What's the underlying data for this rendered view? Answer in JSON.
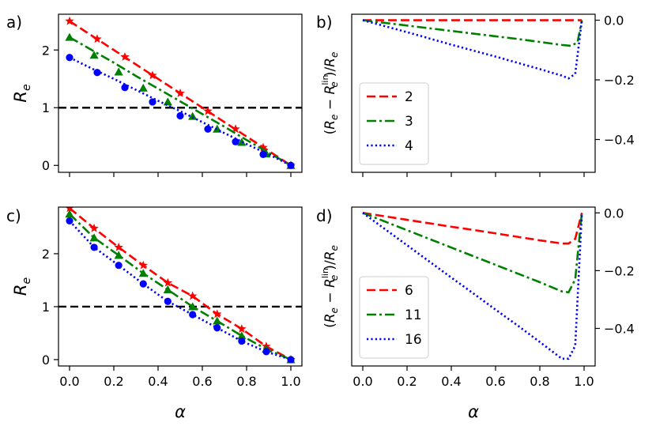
{
  "panel_labels": [
    "a)",
    "b)",
    "c)",
    "d)"
  ],
  "colors": {
    "series1": "#ff0000",
    "series2": "#008000",
    "series3": "#0000ff",
    "reference": "#000000"
  },
  "chart_data": [
    {
      "panel": "a)",
      "type": "line",
      "xlabel": "",
      "ylabel": "R_e",
      "xlim": [
        -0.05,
        1.05
      ],
      "ylim": [
        -0.12,
        2.62
      ],
      "xticks": [
        0.0,
        0.2,
        0.4,
        0.6,
        0.8,
        1.0
      ],
      "xtick_labels": [
        "",
        "",
        "",
        "",
        "",
        ""
      ],
      "yticks": [
        0,
        1,
        2
      ],
      "ytick_labels": [
        "0",
        "1",
        "2"
      ],
      "hline": 1,
      "series": [
        {
          "color": "red",
          "linestyle": "dashed",
          "marker": "star",
          "x": [
            0.0,
            0.1,
            0.2,
            0.3,
            0.4,
            0.5,
            0.6,
            0.7,
            0.8,
            0.9,
            1.0
          ],
          "y": [
            2.5,
            2.25,
            2.0,
            1.75,
            1.5,
            1.25,
            1.0,
            0.75,
            0.5,
            0.25,
            0.0
          ],
          "marker_x": [
            0.0,
            0.125,
            0.25,
            0.375,
            0.5,
            0.625,
            0.75,
            0.875,
            1.0
          ],
          "marker_y": [
            2.5,
            2.19,
            1.88,
            1.56,
            1.25,
            0.94,
            0.63,
            0.31,
            0.0
          ]
        },
        {
          "color": "green",
          "linestyle": "dashdot",
          "marker": "triangle",
          "x": [
            0.0,
            0.1,
            0.2,
            0.3,
            0.4,
            0.5,
            0.6,
            0.7,
            0.8,
            0.9,
            1.0
          ],
          "y": [
            2.22,
            2.0,
            1.78,
            1.55,
            1.33,
            1.11,
            0.89,
            0.67,
            0.44,
            0.22,
            0.0
          ],
          "marker_x": [
            0.0,
            0.111,
            0.222,
            0.333,
            0.444,
            0.556,
            0.667,
            0.778,
            0.889,
            1.0
          ],
          "marker_y": [
            2.22,
            1.91,
            1.62,
            1.34,
            1.1,
            0.85,
            0.63,
            0.4,
            0.2,
            0.0
          ]
        },
        {
          "color": "blue",
          "linestyle": "dotted",
          "marker": "circle",
          "x": [
            0.0,
            0.1,
            0.2,
            0.3,
            0.4,
            0.5,
            0.6,
            0.7,
            0.8,
            0.9,
            1.0
          ],
          "y": [
            1.87,
            1.68,
            1.5,
            1.31,
            1.12,
            0.94,
            0.75,
            0.56,
            0.37,
            0.19,
            0.0
          ],
          "marker_x": [
            0.0,
            0.125,
            0.25,
            0.375,
            0.5,
            0.625,
            0.75,
            0.875,
            1.0
          ],
          "marker_y": [
            1.87,
            1.61,
            1.35,
            1.1,
            0.86,
            0.63,
            0.41,
            0.19,
            0.0
          ]
        }
      ]
    },
    {
      "panel": "b)",
      "type": "line",
      "xlabel": "",
      "ylabel": "(R_e − R_e^lin)/R_e",
      "xlim": [
        -0.05,
        1.05
      ],
      "ylim": [
        -0.51,
        0.02
      ],
      "xticks": [
        0.0,
        0.2,
        0.4,
        0.6,
        0.8,
        1.0
      ],
      "xtick_labels": [
        "",
        "",
        "",
        "",
        "",
        ""
      ],
      "yticks": [
        0.0,
        -0.2,
        -0.4
      ],
      "ytick_labels": [
        "0.0",
        "−0.2",
        "−0.4"
      ],
      "legend": {
        "location": "lower-left",
        "entries": [
          "2",
          "3",
          "4"
        ]
      },
      "series": [
        {
          "name": "2",
          "color": "red",
          "linestyle": "dashed",
          "x": [
            0.0,
            0.5,
            0.99
          ],
          "y": [
            0.0,
            0.0,
            0.0
          ]
        },
        {
          "name": "3",
          "color": "green",
          "linestyle": "dashdot",
          "x": [
            0.0,
            0.1,
            0.2,
            0.3,
            0.4,
            0.5,
            0.6,
            0.7,
            0.8,
            0.9,
            0.94,
            0.97,
            0.99
          ],
          "y": [
            0.0,
            -0.009,
            -0.018,
            -0.027,
            -0.036,
            -0.045,
            -0.054,
            -0.063,
            -0.073,
            -0.083,
            -0.086,
            -0.075,
            0.0
          ]
        },
        {
          "name": "4",
          "color": "blue",
          "linestyle": "dotted",
          "x": [
            0.0,
            0.1,
            0.2,
            0.3,
            0.4,
            0.5,
            0.6,
            0.7,
            0.8,
            0.9,
            0.93,
            0.96,
            0.99
          ],
          "y": [
            0.0,
            -0.02,
            -0.04,
            -0.061,
            -0.082,
            -0.102,
            -0.122,
            -0.143,
            -0.164,
            -0.186,
            -0.195,
            -0.18,
            0.0
          ]
        }
      ]
    },
    {
      "panel": "c)",
      "type": "line",
      "xlabel": "α",
      "ylabel": "R_e",
      "xlim": [
        -0.05,
        1.05
      ],
      "ylim": [
        -0.12,
        2.88
      ],
      "xticks": [
        0.0,
        0.2,
        0.4,
        0.6,
        0.8,
        1.0
      ],
      "xtick_labels": [
        "0.0",
        "0.2",
        "0.4",
        "0.6",
        "0.8",
        "1.0"
      ],
      "yticks": [
        0,
        1,
        2
      ],
      "ytick_labels": [
        "0",
        "1",
        "2"
      ],
      "hline": 1,
      "series": [
        {
          "color": "red",
          "linestyle": "dashed",
          "marker": "star",
          "x": [
            0.0,
            0.111,
            0.222,
            0.333,
            0.444,
            0.556,
            0.667,
            0.778,
            0.889,
            1.0
          ],
          "y": [
            2.86,
            2.48,
            2.12,
            1.78,
            1.45,
            1.2,
            0.86,
            0.58,
            0.25,
            0.0
          ]
        },
        {
          "color": "green",
          "linestyle": "dashdot",
          "marker": "triangle",
          "x": [
            0.0,
            0.111,
            0.222,
            0.333,
            0.444,
            0.556,
            0.667,
            0.778,
            0.889,
            1.0
          ],
          "y": [
            2.75,
            2.3,
            1.97,
            1.63,
            1.32,
            1.0,
            0.73,
            0.45,
            0.2,
            0.0
          ]
        },
        {
          "color": "blue",
          "linestyle": "dotted",
          "marker": "circle",
          "x": [
            0.0,
            0.111,
            0.222,
            0.333,
            0.444,
            0.556,
            0.667,
            0.778,
            0.889,
            1.0
          ],
          "y": [
            2.62,
            2.12,
            1.78,
            1.43,
            1.1,
            0.85,
            0.6,
            0.35,
            0.15,
            0.0
          ]
        }
      ]
    },
    {
      "panel": "d)",
      "type": "line",
      "xlabel": "α",
      "ylabel": "(R_e − R_e^lin)/R_e",
      "xlim": [
        -0.05,
        1.05
      ],
      "ylim": [
        -0.53,
        0.02
      ],
      "xticks": [
        0.0,
        0.2,
        0.4,
        0.6,
        0.8,
        1.0
      ],
      "xtick_labels": [
        "0.0",
        "0.2",
        "0.4",
        "0.6",
        "0.8",
        "1.0"
      ],
      "yticks": [
        0.0,
        -0.2,
        -0.4
      ],
      "ytick_labels": [
        "0.0",
        "−0.2",
        "−0.4"
      ],
      "legend": {
        "location": "lower-left",
        "entries": [
          "6",
          "11",
          "16"
        ]
      },
      "series": [
        {
          "name": "6",
          "color": "red",
          "linestyle": "dashed",
          "x": [
            0.0,
            0.1,
            0.2,
            0.3,
            0.4,
            0.5,
            0.6,
            0.7,
            0.8,
            0.9,
            0.93,
            0.96,
            0.99
          ],
          "y": [
            0.0,
            -0.012,
            -0.024,
            -0.036,
            -0.048,
            -0.059,
            -0.071,
            -0.083,
            -0.095,
            -0.106,
            -0.106,
            -0.09,
            0.0
          ]
        },
        {
          "name": "11",
          "color": "green",
          "linestyle": "dashdot",
          "x": [
            0.0,
            0.1,
            0.2,
            0.3,
            0.4,
            0.5,
            0.6,
            0.7,
            0.8,
            0.9,
            0.93,
            0.96,
            0.99
          ],
          "y": [
            0.0,
            -0.03,
            -0.06,
            -0.09,
            -0.12,
            -0.15,
            -0.18,
            -0.21,
            -0.24,
            -0.272,
            -0.275,
            -0.23,
            0.0
          ]
        },
        {
          "name": "16",
          "color": "blue",
          "linestyle": "dotted",
          "x": [
            0.0,
            0.1,
            0.2,
            0.3,
            0.4,
            0.5,
            0.6,
            0.7,
            0.8,
            0.9,
            0.93,
            0.96,
            0.99
          ],
          "y": [
            0.0,
            -0.056,
            -0.112,
            -0.168,
            -0.224,
            -0.279,
            -0.335,
            -0.39,
            -0.447,
            -0.505,
            -0.505,
            -0.46,
            0.0
          ]
        }
      ]
    }
  ]
}
